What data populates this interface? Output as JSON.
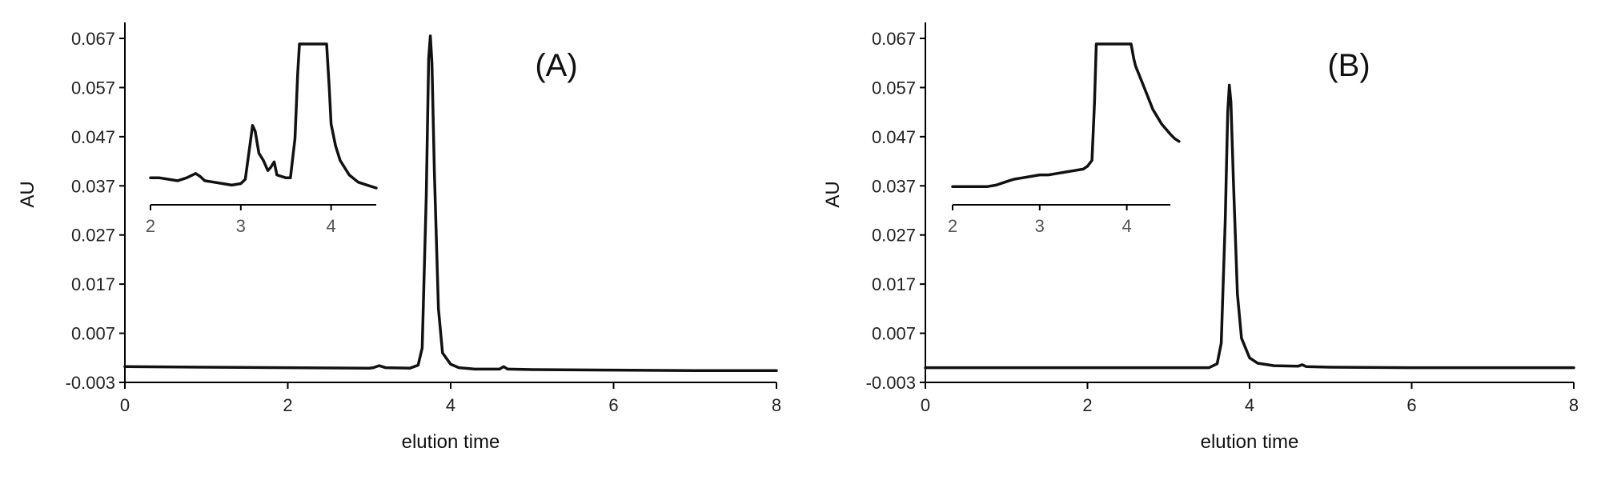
{
  "chart_data": [
    {
      "type": "line",
      "panel_label": "(A)",
      "xlabel": "elution time",
      "ylabel": "AU",
      "xlim": [
        0,
        8
      ],
      "ylim": [
        -0.003,
        0.07
      ],
      "xticks": [
        0,
        2,
        4,
        6,
        8
      ],
      "xtick_labels": [
        "0",
        "2",
        "4",
        "6",
        "8"
      ],
      "yticks": [
        -0.003,
        0.007,
        0.017,
        0.027,
        0.037,
        0.047,
        0.057,
        0.067
      ],
      "ytick_labels": [
        "-0.003",
        "0.007",
        "0.017",
        "0.027",
        "0.037",
        "0.047",
        "0.057",
        "0.067"
      ],
      "grid": false,
      "x": [
        0,
        1,
        2,
        3,
        3.05,
        3.12,
        3.2,
        3.5,
        3.6,
        3.65,
        3.7,
        3.73,
        3.75,
        3.77,
        3.8,
        3.85,
        3.9,
        4.0,
        4.1,
        4.3,
        4.6,
        4.65,
        4.7,
        5,
        6,
        7,
        8
      ],
      "y": [
        0.0002,
        0.0001,
        0.0,
        -0.0001,
        0.0,
        0.0004,
        0.0,
        -0.0001,
        0.0005,
        0.004,
        0.035,
        0.063,
        0.0675,
        0.062,
        0.04,
        0.012,
        0.003,
        0.0007,
        0.0,
        -0.0003,
        -0.0003,
        0.0002,
        -0.0003,
        -0.0004,
        -0.0005,
        -0.0006,
        -0.0006
      ],
      "inset": {
        "xlim": [
          2,
          4.5
        ],
        "xticks": [
          2,
          3,
          4
        ],
        "xtick_labels": [
          "2",
          "3",
          "4"
        ],
        "ylim": [
          0,
          1.1
        ],
        "x": [
          2,
          2.1,
          2.2,
          2.3,
          2.4,
          2.5,
          2.55,
          2.6,
          2.7,
          2.8,
          2.9,
          3.0,
          3.05,
          3.1,
          3.13,
          3.16,
          3.2,
          3.25,
          3.3,
          3.33,
          3.37,
          3.4,
          3.45,
          3.5,
          3.55,
          3.6,
          3.63,
          3.65,
          3.68,
          3.95,
          3.98,
          4.0,
          4.05,
          4.1,
          4.2,
          4.3,
          4.4,
          4.5
        ],
        "y": [
          0.18,
          0.18,
          0.17,
          0.16,
          0.18,
          0.21,
          0.19,
          0.16,
          0.15,
          0.14,
          0.13,
          0.14,
          0.17,
          0.4,
          0.54,
          0.5,
          0.35,
          0.3,
          0.23,
          0.25,
          0.29,
          0.2,
          0.19,
          0.18,
          0.18,
          0.45,
          0.9,
          1.1,
          1.1,
          1.1,
          0.8,
          0.55,
          0.4,
          0.3,
          0.2,
          0.15,
          0.13,
          0.11
        ]
      }
    },
    {
      "type": "line",
      "panel_label": "(B)",
      "xlabel": "elution time",
      "ylabel": "AU",
      "xlim": [
        0,
        8
      ],
      "ylim": [
        -0.003,
        0.07
      ],
      "xticks": [
        0,
        2,
        4,
        6,
        8
      ],
      "xtick_labels": [
        "0",
        "2",
        "4",
        "6",
        "8"
      ],
      "yticks": [
        -0.003,
        0.007,
        0.017,
        0.027,
        0.037,
        0.047,
        0.057,
        0.067
      ],
      "ytick_labels": [
        "-0.003",
        "0.007",
        "0.017",
        "0.027",
        "0.037",
        "0.047",
        "0.057",
        "0.067"
      ],
      "grid": false,
      "x": [
        0,
        1,
        2,
        3,
        3.5,
        3.6,
        3.65,
        3.7,
        3.73,
        3.75,
        3.77,
        3.8,
        3.85,
        3.9,
        4.0,
        4.1,
        4.3,
        4.6,
        4.65,
        4.7,
        5,
        6,
        7,
        8
      ],
      "y": [
        0.0,
        0.0,
        0.0,
        0.0,
        0.0,
        0.0008,
        0.005,
        0.03,
        0.052,
        0.0575,
        0.054,
        0.038,
        0.015,
        0.006,
        0.002,
        0.0009,
        0.0004,
        0.0003,
        0.0006,
        0.0002,
        0.0001,
        0.0,
        0.0,
        0.0
      ],
      "inset": {
        "xlim": [
          2,
          4.5
        ],
        "xticks": [
          2,
          3,
          4
        ],
        "xtick_labels": [
          "2",
          "3",
          "4"
        ],
        "ylim": [
          0,
          1.1
        ],
        "x": [
          2,
          2.1,
          2.2,
          2.3,
          2.4,
          2.5,
          2.6,
          2.7,
          2.8,
          2.9,
          3.0,
          3.1,
          3.2,
          3.3,
          3.4,
          3.5,
          3.55,
          3.6,
          3.63,
          3.65,
          3.68,
          4.05,
          4.08,
          4.1,
          4.2,
          4.3,
          4.4,
          4.5,
          4.55,
          4.6
        ],
        "y": [
          0.12,
          0.12,
          0.12,
          0.12,
          0.12,
          0.13,
          0.15,
          0.17,
          0.18,
          0.19,
          0.2,
          0.2,
          0.21,
          0.22,
          0.23,
          0.24,
          0.26,
          0.3,
          0.7,
          1.1,
          1.1,
          1.1,
          1.0,
          0.95,
          0.8,
          0.65,
          0.55,
          0.48,
          0.45,
          0.43
        ]
      }
    }
  ]
}
